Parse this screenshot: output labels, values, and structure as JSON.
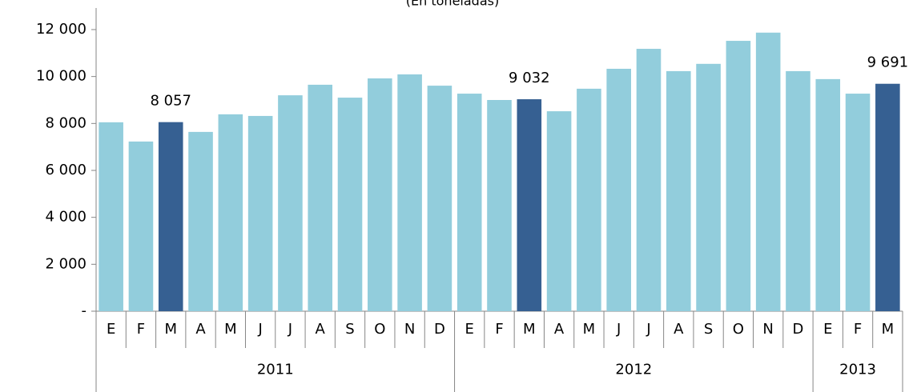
{
  "chart_data": {
    "type": "bar",
    "subtitle": "(En toneladas)",
    "groups": [
      {
        "label": "2011",
        "categories": [
          "E",
          "F",
          "M",
          "A",
          "M",
          "J",
          "J",
          "A",
          "S",
          "O",
          "N",
          "D"
        ]
      },
      {
        "label": "2012",
        "categories": [
          "E",
          "F",
          "M",
          "A",
          "M",
          "J",
          "J",
          "A",
          "S",
          "O",
          "N",
          "D"
        ]
      },
      {
        "label": "2013",
        "categories": [
          "E",
          "F",
          "M"
        ]
      }
    ],
    "values": [
      8050,
      7230,
      8057,
      7640,
      8390,
      8320,
      9200,
      9650,
      9100,
      9920,
      10090,
      9610,
      9270,
      9000,
      9032,
      8520,
      9480,
      10330,
      11180,
      10230,
      10540,
      11520,
      11870,
      10230,
      9890,
      9270,
      9691
    ],
    "value_labels": [
      null,
      null,
      "8 057",
      null,
      null,
      null,
      null,
      null,
      null,
      null,
      null,
      null,
      null,
      null,
      "9 032",
      null,
      null,
      null,
      null,
      null,
      null,
      null,
      null,
      null,
      null,
      null,
      "9 691"
    ],
    "colors": [
      "#92cddc",
      "#92cddc",
      "#366092",
      "#92cddc",
      "#92cddc",
      "#92cddc",
      "#92cddc",
      "#92cddc",
      "#92cddc",
      "#92cddc",
      "#92cddc",
      "#92cddc",
      "#92cddc",
      "#92cddc",
      "#366092",
      "#92cddc",
      "#92cddc",
      "#92cddc",
      "#92cddc",
      "#92cddc",
      "#92cddc",
      "#92cddc",
      "#92cddc",
      "#92cddc",
      "#92cddc",
      "#92cddc",
      "#366092"
    ],
    "ylim": [
      0,
      13000
    ],
    "yticks": [
      {
        "value": 0,
        "label": "-"
      },
      {
        "value": 2000,
        "label": "2 000"
      },
      {
        "value": 4000,
        "label": "4 000"
      },
      {
        "value": 6000,
        "label": "6 000"
      },
      {
        "value": 8000,
        "label": "8 000"
      },
      {
        "value": 10000,
        "label": "10 000"
      },
      {
        "value": 12000,
        "label": "12 000"
      }
    ]
  }
}
